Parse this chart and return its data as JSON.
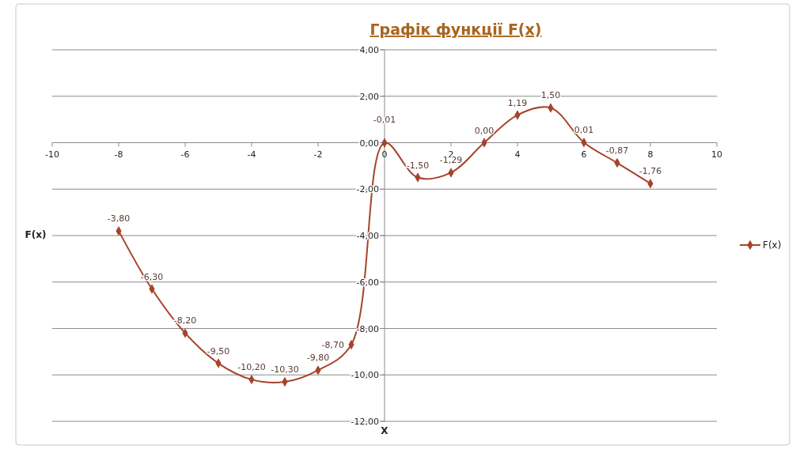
{
  "chart_data": {
    "type": "line",
    "title": "Графік функції F(x)",
    "xlabel": "X",
    "ylabel": "F(x)",
    "xlim": [
      -10,
      10
    ],
    "ylim": [
      -12,
      4
    ],
    "xticks": [
      -10,
      -8,
      -6,
      -4,
      -2,
      0,
      2,
      4,
      6,
      8,
      10
    ],
    "yticks": [
      {
        "value": -12,
        "label": "-12,00"
      },
      {
        "value": -10,
        "label": "-10,00"
      },
      {
        "value": -8,
        "label": "-8,00"
      },
      {
        "value": -6,
        "label": "-6,00"
      },
      {
        "value": -4,
        "label": "-4,00"
      },
      {
        "value": -2,
        "label": "-2,00"
      },
      {
        "value": 0,
        "label": "0,00"
      },
      {
        "value": 2,
        "label": "2,00"
      },
      {
        "value": 4,
        "label": "4,00"
      }
    ],
    "grid": "y",
    "legend": "right",
    "marker": "diamond",
    "line_style": "solid",
    "series": [
      {
        "name": "F(x)",
        "color": "#a5442a",
        "x": [
          -8,
          -7,
          -6,
          -5,
          -4,
          -3,
          -2,
          -1,
          0,
          1,
          2,
          3,
          4,
          5,
          6,
          7,
          8
        ],
        "values": [
          -3.8,
          -6.3,
          -8.2,
          -9.5,
          -10.2,
          -10.3,
          -9.8,
          -8.7,
          -0.01,
          -1.5,
          -1.29,
          0,
          1.19,
          1.5,
          0.01,
          -0.87,
          -1.76
        ],
        "value_labels": [
          "-3,80",
          "-6,30",
          "-8,20",
          "-9,50",
          "-10,20",
          "-10,30",
          "-9,80",
          "-8,70",
          "-0,01",
          "-1,50",
          "-1,29",
          "0,00",
          "1,19",
          "1,50",
          "0,01",
          "-0,87",
          "-1,76"
        ]
      }
    ]
  }
}
